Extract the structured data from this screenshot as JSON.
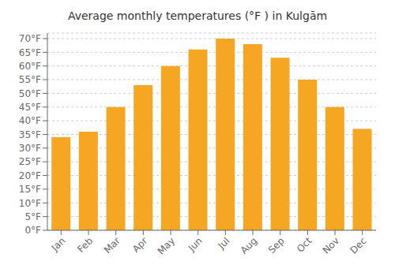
{
  "chart_data": {
    "type": "bar",
    "title": "Average monthly temperatures (°F ) in Kulgām",
    "categories": [
      "Jan",
      "Feb",
      "Mar",
      "Apr",
      "May",
      "Jun",
      "Jul",
      "Aug",
      "Sep",
      "Oct",
      "Nov",
      "Dec"
    ],
    "values": [
      34,
      36,
      45,
      53,
      60,
      66,
      70,
      68,
      63,
      55,
      45,
      37
    ],
    "color": "#F5A623",
    "ylim": [
      0,
      72
    ],
    "yticks": [
      {
        "value": 0,
        "label": "0°F"
      },
      {
        "value": 5,
        "label": "5°F"
      },
      {
        "value": 10,
        "label": "10°F"
      },
      {
        "value": 15,
        "label": "15°F"
      },
      {
        "value": 20,
        "label": "20°F"
      },
      {
        "value": 25,
        "label": "25°F"
      },
      {
        "value": 30,
        "label": "30°F"
      },
      {
        "value": 35,
        "label": "35°F"
      },
      {
        "value": 40,
        "label": "40°F"
      },
      {
        "value": 45,
        "label": "45°F"
      },
      {
        "value": 50,
        "label": "50°F"
      },
      {
        "value": 55,
        "label": "55°F"
      },
      {
        "value": 60,
        "label": "60°F"
      },
      {
        "value": 65,
        "label": "65°F"
      },
      {
        "value": 70,
        "label": "70°F"
      }
    ],
    "grid": true
  }
}
